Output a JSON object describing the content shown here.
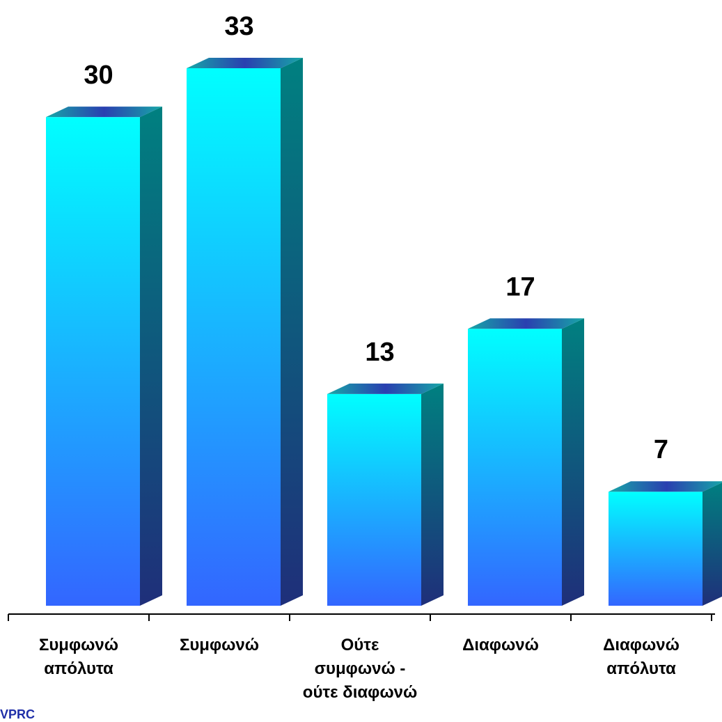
{
  "chart_data": {
    "type": "bar",
    "categories": [
      [
        "Συμφωνώ",
        "απόλυτα"
      ],
      [
        "Συμφωνώ"
      ],
      [
        "Ούτε",
        "συμφωνώ -",
        "ούτε διαφωνώ"
      ],
      [
        "Διαφωνώ"
      ],
      [
        "Διαφωνώ",
        "απόλυτα"
      ]
    ],
    "values": [
      30,
      33,
      13,
      17,
      7
    ],
    "ylim": [
      0,
      33
    ],
    "grid": false,
    "legend": "none",
    "colors": {
      "bar_top": "#00ffff",
      "bar_bottom": "#3366ff",
      "side_top": "#008080",
      "side_bottom": "#1f2f7a",
      "cap": "#2a3fb0",
      "cap_edge": "#17a7a7"
    }
  },
  "source_label": "VPRC"
}
